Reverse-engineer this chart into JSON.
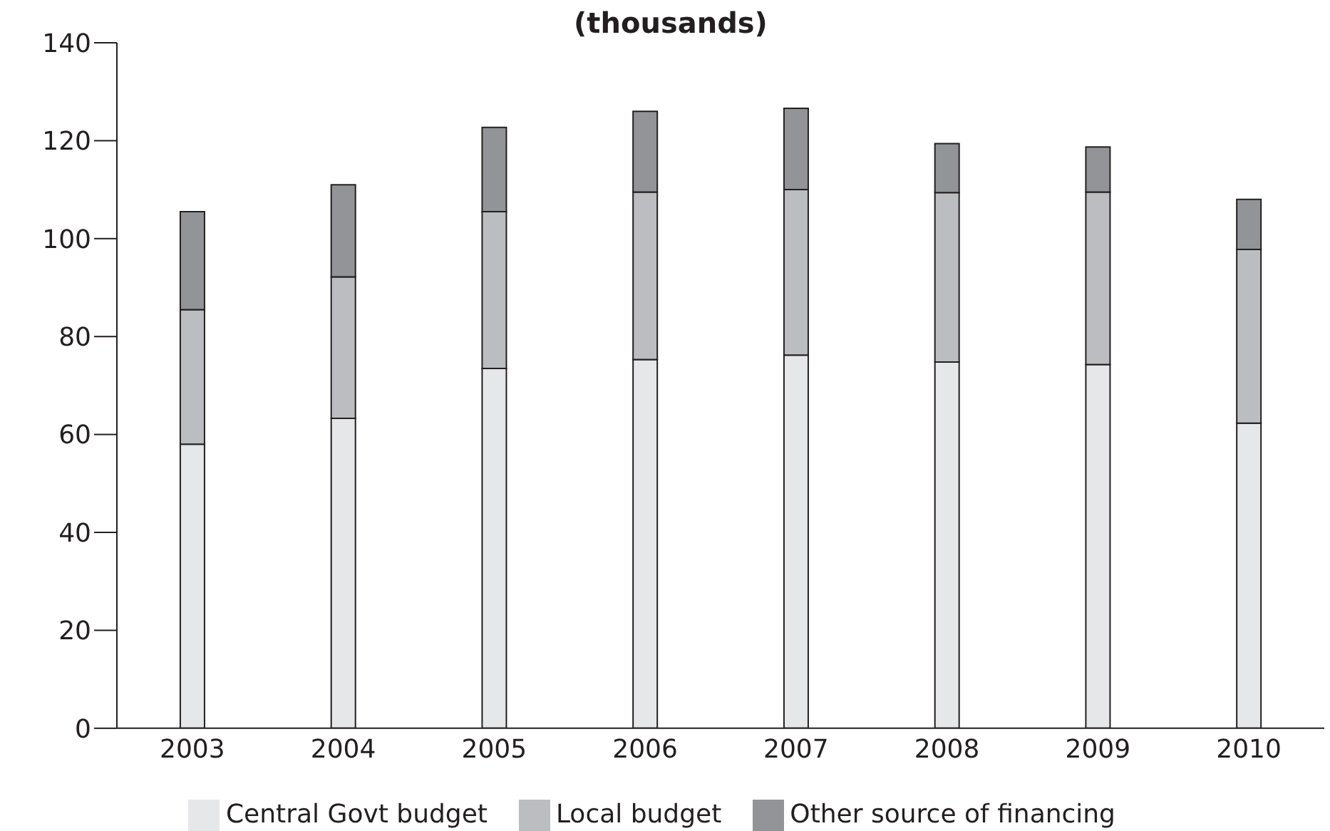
{
  "chart_data": {
    "type": "bar",
    "title": "(thousands)",
    "stacked": true,
    "categories": [
      "2003",
      "2004",
      "2005",
      "2006",
      "2007",
      "2008",
      "2009",
      "2010"
    ],
    "series": [
      {
        "name": "Central Govt budget",
        "color": "#e6e7e9",
        "values": [
          58,
          63.3,
          73.5,
          75.3,
          76.2,
          74.8,
          74.3,
          62.3
        ]
      },
      {
        "name": "Local budget",
        "color": "#bcbdc1",
        "values": [
          27.5,
          28.9,
          32,
          34.2,
          33.8,
          34.6,
          35.2,
          35.5
        ]
      },
      {
        "name": "Other source of financing",
        "color": "#939498",
        "values": [
          20,
          18.8,
          17.2,
          16.5,
          16.6,
          10,
          9.2,
          10.2
        ]
      }
    ],
    "ylim": [
      0,
      140
    ],
    "yticks": [
      0,
      20,
      40,
      60,
      80,
      100,
      120,
      140
    ],
    "grid": false,
    "legend": "bottom"
  }
}
